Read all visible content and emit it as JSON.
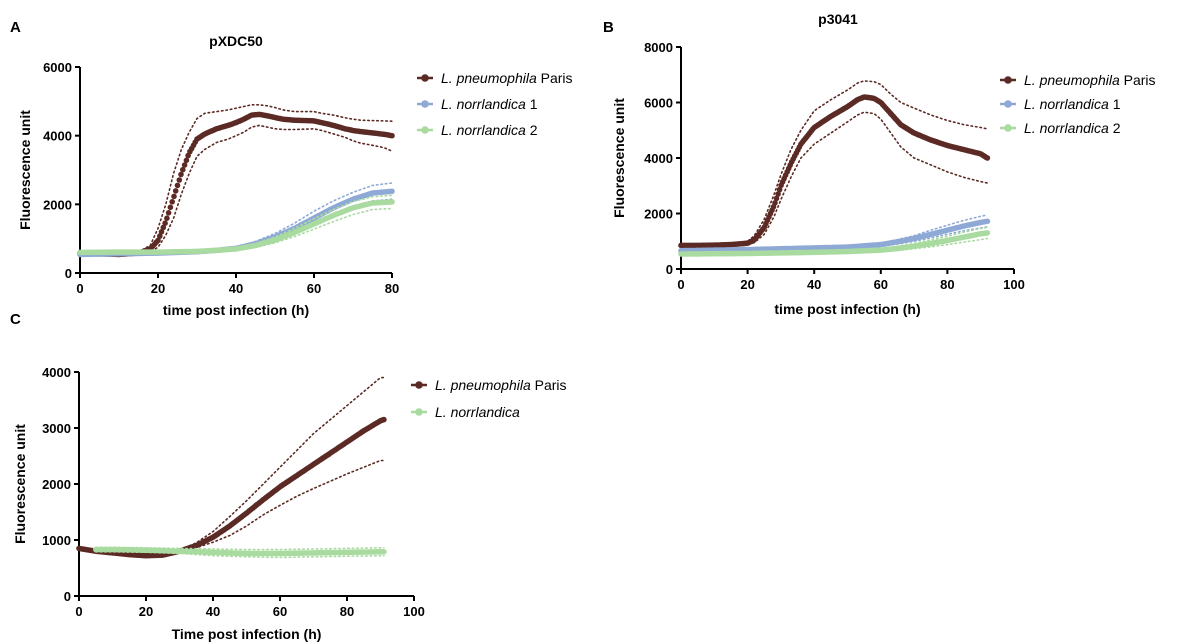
{
  "panels": [
    "A",
    "B",
    "C"
  ],
  "chart_data": [
    {
      "panel": "A",
      "type": "line",
      "title": "pXDC50",
      "xlabel": "time post infection (h)",
      "ylabel": "Fluorescence unit",
      "xlim": [
        0,
        80
      ],
      "ylim": [
        0,
        6000
      ],
      "xticks": [
        0,
        20,
        40,
        60,
        80
      ],
      "yticks": [
        0,
        2000,
        4000,
        6000
      ],
      "legend_position": "top-right",
      "series": [
        {
          "name_italic": "L. pneumophila",
          "name_plain": " Paris",
          "color": "#5c2a24",
          "x": [
            0,
            5,
            10,
            15,
            18,
            20,
            22,
            24,
            26,
            28,
            30,
            32,
            35,
            38,
            40,
            42,
            44,
            46,
            48,
            50,
            52,
            55,
            58,
            60,
            62,
            65,
            68,
            70,
            72,
            75,
            78,
            80
          ],
          "y": [
            580,
            560,
            540,
            580,
            700,
            950,
            1500,
            2200,
            2900,
            3500,
            3900,
            4050,
            4200,
            4300,
            4380,
            4480,
            4600,
            4620,
            4580,
            4530,
            4480,
            4450,
            4440,
            4430,
            4380,
            4300,
            4200,
            4150,
            4120,
            4080,
            4040,
            4000
          ],
          "upper": [
            580,
            560,
            550,
            620,
            800,
            1300,
            2000,
            2900,
            3600,
            4100,
            4500,
            4650,
            4700,
            4750,
            4800,
            4850,
            4900,
            4900,
            4870,
            4820,
            4750,
            4700,
            4700,
            4700,
            4650,
            4600,
            4520,
            4480,
            4450,
            4440,
            4430,
            4420
          ],
          "lower": [
            580,
            560,
            530,
            560,
            620,
            750,
            1100,
            1600,
            2300,
            2900,
            3400,
            3600,
            3800,
            3900,
            4000,
            4100,
            4250,
            4300,
            4250,
            4200,
            4180,
            4180,
            4190,
            4200,
            4150,
            4050,
            3950,
            3850,
            3780,
            3720,
            3650,
            3550
          ]
        },
        {
          "name_italic": "L. norrlandica",
          "name_plain": " 1",
          "color": "#8fa9d6",
          "x": [
            0,
            10,
            20,
            30,
            35,
            40,
            45,
            50,
            55,
            60,
            65,
            70,
            75,
            80
          ],
          "y": [
            540,
            560,
            580,
            620,
            660,
            720,
            850,
            1050,
            1300,
            1600,
            1900,
            2150,
            2330,
            2380
          ],
          "upper": [
            560,
            580,
            600,
            650,
            700,
            760,
            920,
            1150,
            1450,
            1800,
            2100,
            2350,
            2550,
            2620
          ],
          "lower": [
            520,
            540,
            560,
            590,
            620,
            680,
            780,
            950,
            1150,
            1400,
            1700,
            1950,
            2100,
            2150
          ]
        },
        {
          "name_italic": "L. norrlandica",
          "name_plain": " 2",
          "color": "#a9dba0",
          "x": [
            0,
            10,
            20,
            30,
            35,
            40,
            45,
            50,
            55,
            60,
            65,
            70,
            75,
            80
          ],
          "y": [
            600,
            610,
            610,
            630,
            660,
            700,
            800,
            960,
            1180,
            1430,
            1680,
            1900,
            2040,
            2070
          ],
          "upper": [
            640,
            640,
            640,
            660,
            690,
            740,
            860,
            1050,
            1300,
            1580,
            1850,
            2080,
            2220,
            2260
          ],
          "lower": [
            570,
            580,
            580,
            600,
            630,
            670,
            750,
            880,
            1060,
            1280,
            1500,
            1700,
            1850,
            1880
          ]
        }
      ]
    },
    {
      "panel": "B",
      "type": "line",
      "title": "p3041",
      "xlabel": "time post infection (h)",
      "ylabel": "Fluorescence unit",
      "xlim": [
        0,
        100
      ],
      "ylim": [
        0,
        8000
      ],
      "xticks": [
        0,
        20,
        40,
        60,
        80,
        100
      ],
      "yticks": [
        0,
        2000,
        4000,
        6000,
        8000
      ],
      "legend_position": "top-right",
      "series": [
        {
          "name_italic": "L. pneumophila",
          "name_plain": " Paris",
          "color": "#5c2a24",
          "x": [
            0,
            5,
            10,
            15,
            20,
            22,
            25,
            28,
            30,
            33,
            36,
            40,
            45,
            50,
            53,
            55,
            58,
            60,
            63,
            66,
            70,
            75,
            80,
            85,
            90,
            92
          ],
          "y": [
            850,
            850,
            860,
            880,
            930,
            1050,
            1500,
            2300,
            3000,
            3800,
            4500,
            5100,
            5500,
            5850,
            6100,
            6200,
            6150,
            6000,
            5600,
            5200,
            4900,
            4650,
            4450,
            4300,
            4150,
            4000
          ],
          "upper": [
            900,
            900,
            900,
            920,
            1000,
            1200,
            1800,
            2700,
            3400,
            4300,
            5000,
            5700,
            6100,
            6450,
            6700,
            6780,
            6750,
            6650,
            6300,
            6000,
            5800,
            5550,
            5350,
            5200,
            5100,
            5050
          ],
          "lower": [
            800,
            800,
            810,
            840,
            880,
            950,
            1250,
            1900,
            2500,
            3300,
            4000,
            4500,
            4900,
            5300,
            5550,
            5650,
            5600,
            5400,
            4900,
            4400,
            4000,
            3750,
            3500,
            3300,
            3150,
            3100
          ]
        },
        {
          "name_italic": "L. norrlandica",
          "name_plain": " 1",
          "color": "#8fa9d6",
          "x": [
            0,
            10,
            20,
            30,
            40,
            50,
            60,
            65,
            70,
            75,
            80,
            85,
            90,
            92
          ],
          "y": [
            660,
            680,
            700,
            730,
            760,
            790,
            880,
            980,
            1100,
            1250,
            1400,
            1550,
            1680,
            1720
          ],
          "upper": [
            690,
            710,
            730,
            760,
            790,
            830,
            940,
            1060,
            1200,
            1400,
            1580,
            1750,
            1900,
            1950
          ],
          "lower": [
            630,
            650,
            670,
            700,
            730,
            750,
            820,
            900,
            1000,
            1120,
            1250,
            1380,
            1480,
            1520
          ]
        },
        {
          "name_italic": "L. norrlandica",
          "name_plain": " 2",
          "color": "#a9dba0",
          "x": [
            0,
            10,
            20,
            30,
            40,
            50,
            60,
            65,
            70,
            75,
            80,
            85,
            90,
            92
          ],
          "y": [
            540,
            550,
            560,
            580,
            600,
            630,
            680,
            740,
            820,
            920,
            1030,
            1150,
            1270,
            1300
          ],
          "upper": [
            570,
            580,
            590,
            610,
            640,
            680,
            740,
            820,
            920,
            1050,
            1180,
            1330,
            1460,
            1500
          ],
          "lower": [
            520,
            530,
            540,
            550,
            570,
            590,
            620,
            670,
            730,
            800,
            880,
            970,
            1060,
            1100
          ]
        }
      ]
    },
    {
      "panel": "C",
      "type": "line",
      "title": "",
      "xlabel": "Time post infection (h)",
      "ylabel": "Fluorescence unit",
      "xlim": [
        0,
        100
      ],
      "ylim": [
        0,
        4000
      ],
      "xticks": [
        0,
        20,
        40,
        60,
        80,
        100
      ],
      "yticks": [
        0,
        1000,
        2000,
        3000,
        4000
      ],
      "legend_position": "top-right",
      "series": [
        {
          "name_italic": "L. pneumophila",
          "name_plain": " Paris",
          "color": "#5c2a24",
          "x": [
            0,
            5,
            10,
            15,
            20,
            25,
            30,
            35,
            40,
            45,
            50,
            55,
            60,
            65,
            70,
            75,
            80,
            85,
            90,
            91
          ],
          "y": [
            850,
            800,
            770,
            740,
            720,
            730,
            800,
            900,
            1050,
            1250,
            1480,
            1720,
            1950,
            2150,
            2350,
            2550,
            2750,
            2950,
            3130,
            3150
          ],
          "upper": [
            850,
            800,
            770,
            740,
            720,
            740,
            820,
            950,
            1150,
            1420,
            1700,
            2000,
            2300,
            2600,
            2900,
            3150,
            3400,
            3650,
            3900,
            3900
          ],
          "lower": [
            850,
            800,
            770,
            740,
            720,
            720,
            780,
            860,
            960,
            1080,
            1250,
            1450,
            1620,
            1780,
            1920,
            2050,
            2180,
            2300,
            2420,
            2420
          ]
        },
        {
          "name_italic": "L. norrlandica",
          "name_plain": "",
          "color": "#a9dba0",
          "x": [
            5,
            10,
            20,
            30,
            40,
            50,
            60,
            70,
            80,
            90,
            91
          ],
          "y": [
            830,
            830,
            820,
            800,
            780,
            760,
            760,
            770,
            780,
            790,
            790
          ],
          "upper": [
            870,
            870,
            860,
            850,
            840,
            830,
            830,
            840,
            850,
            860,
            860
          ],
          "lower": [
            790,
            790,
            780,
            760,
            720,
            700,
            690,
            700,
            710,
            720,
            720
          ]
        }
      ]
    }
  ]
}
